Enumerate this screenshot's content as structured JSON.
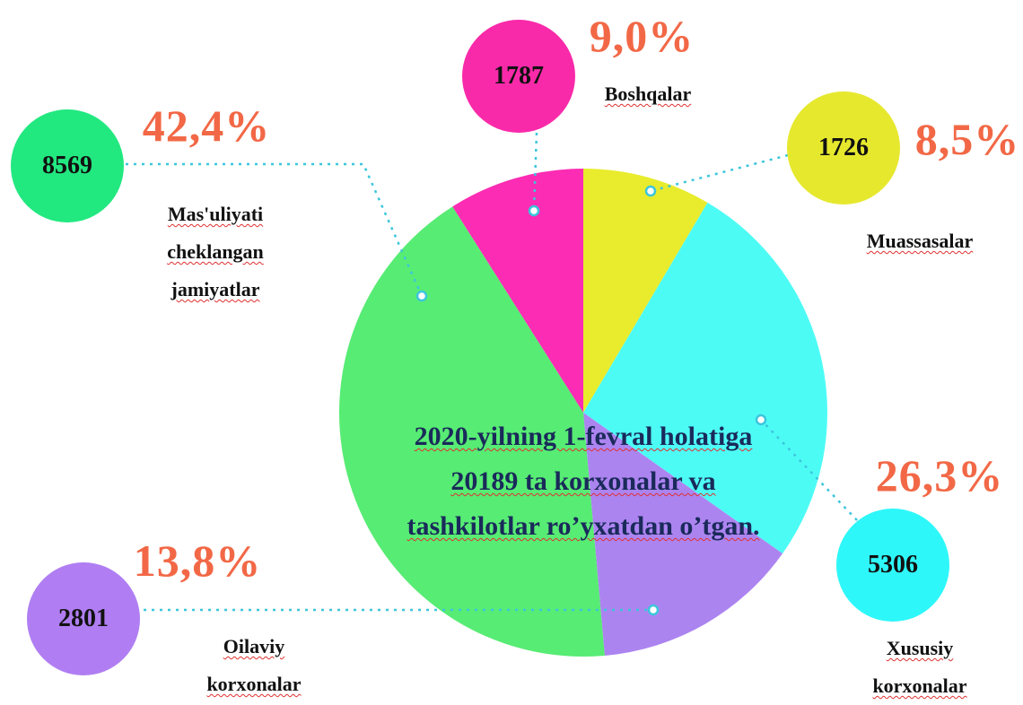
{
  "chart_data": {
    "type": "pie",
    "categories": [
      "Muassasalar",
      "Xususiy korxonalar",
      "Oilaviy korxonalar",
      "Mas'uliyati cheklangan jamiyatlar",
      "Boshqalar"
    ],
    "values": [
      8.5,
      26.3,
      13.8,
      42.4,
      9.0
    ],
    "value_labels": [
      "8,5%",
      "26,3%",
      "13,8%",
      "42,4%",
      "9,0%"
    ],
    "counts": [
      1726,
      5306,
      2801,
      8569,
      1787
    ],
    "colors": [
      "#e8ec2c",
      "#4dfbf5",
      "#ac84f0",
      "#57ec74",
      "#fc2cb4"
    ],
    "bubble_colors": [
      "#e6e82e",
      "#2ef7f9",
      "#b07ef2",
      "#22e880",
      "#f92aa9"
    ],
    "center_text": "2020-yilning 1-fevral holatiga 20189 ta korxonalar va tashkilotlar ro’yxatdan o’tgan."
  }
}
